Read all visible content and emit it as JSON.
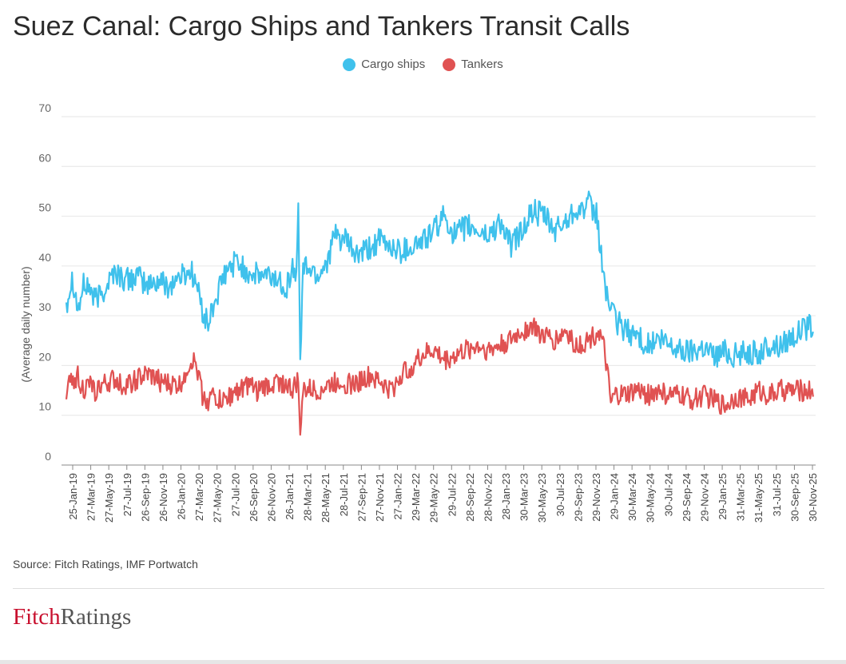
{
  "title": "Suez Canal: Cargo Ships and Tankers Transit Calls",
  "legend": [
    {
      "label": "Cargo ships",
      "color": "#3fc1ec"
    },
    {
      "label": "Tankers",
      "color": "#e05252"
    }
  ],
  "source": "Source: Fitch Ratings, IMF Portwatch",
  "brand": {
    "part1": "Fitch",
    "part2": "Ratings"
  },
  "chart_data": {
    "type": "line",
    "title": "Suez Canal: Cargo Ships and Tankers Transit Calls",
    "xlabel": "",
    "ylabel": "(Average daily number)",
    "ylim": [
      0,
      70
    ],
    "yticks": [
      0,
      10,
      20,
      30,
      40,
      50,
      60,
      70
    ],
    "grid": true,
    "legend_position": "top-center",
    "xlim": [
      2019.07,
      2025.92
    ],
    "x_tick_labels": [
      "25-Jan-19",
      "27-Mar-19",
      "27-May-19",
      "27-Jul-19",
      "26-Sep-19",
      "26-Nov-19",
      "26-Jan-20",
      "27-Mar-20",
      "27-May-20",
      "27-Jul-20",
      "26-Sep-20",
      "26-Nov-20",
      "26-Jan-21",
      "28-Mar-21",
      "28-May-21",
      "28-Jul-21",
      "27-Sep-21",
      "27-Nov-21",
      "27-Jan-22",
      "29-Mar-22",
      "29-May-22",
      "29-Jul-22",
      "28-Sep-22",
      "28-Nov-22",
      "28-Jan-23",
      "30-Mar-23",
      "30-May-23",
      "30-Jul-23",
      "29-Sep-23",
      "29-Nov-23",
      "29-Jan-24",
      "30-Mar-24",
      "30-May-24",
      "30-Jul-24",
      "29-Sep-24",
      "29-Nov-24",
      "29-Jan-25",
      "31-Mar-25",
      "31-May-25",
      "31-Jul-25",
      "30-Sep-25",
      "30-Nov-25"
    ],
    "series": [
      {
        "name": "Cargo ships",
        "color": "#3fc1ec",
        "x": [
          2019.07,
          2019.12,
          2019.17,
          2019.22,
          2019.27,
          2019.32,
          2019.37,
          2019.45,
          2019.55,
          2019.65,
          2019.75,
          2019.85,
          2019.95,
          2020.05,
          2020.15,
          2020.25,
          2020.3,
          2020.35,
          2020.4,
          2020.45,
          2020.5,
          2020.55,
          2020.65,
          2020.75,
          2020.85,
          2020.95,
          2021.05,
          2021.12,
          2021.17,
          2021.2,
          2021.22,
          2021.24,
          2021.26,
          2021.3,
          2021.4,
          2021.5,
          2021.55,
          2021.65,
          2021.75,
          2021.85,
          2021.95,
          2022.05,
          2022.15,
          2022.25,
          2022.35,
          2022.45,
          2022.55,
          2022.65,
          2022.75,
          2022.85,
          2022.95,
          2023.05,
          2023.15,
          2023.25,
          2023.35,
          2023.45,
          2023.55,
          2023.65,
          2023.75,
          2023.8,
          2023.85,
          2023.9,
          2023.93,
          2023.96,
          2024.0,
          2024.05,
          2024.1,
          2024.2,
          2024.3,
          2024.4,
          2024.5,
          2024.6,
          2024.7,
          2024.8,
          2024.9,
          2025.0,
          2025.1,
          2025.2,
          2025.3,
          2025.4,
          2025.5,
          2025.6,
          2025.7,
          2025.8,
          2025.9
        ],
        "values": [
          34,
          33,
          38,
          31,
          36,
          36,
          33,
          35,
          39,
          37,
          38,
          36,
          37,
          36,
          38,
          39,
          36,
          31,
          28,
          32,
          35,
          38,
          41,
          39,
          38,
          38,
          37,
          36,
          40,
          36,
          54,
          18,
          39,
          40,
          38,
          42,
          46,
          45,
          42,
          43,
          45,
          44,
          43,
          44,
          45,
          47,
          50,
          46,
          48,
          47,
          46,
          49,
          44,
          47,
          51,
          50,
          47,
          49,
          52,
          51,
          53,
          50,
          51,
          44,
          37,
          32,
          29,
          27,
          26,
          24,
          25,
          24,
          23,
          23,
          24,
          22,
          23,
          22,
          23,
          22,
          24,
          24,
          26,
          27,
          28
        ]
      },
      {
        "name": "Tankers",
        "color": "#e05252",
        "x": [
          2019.07,
          2019.12,
          2019.17,
          2019.22,
          2019.27,
          2019.32,
          2019.37,
          2019.45,
          2019.55,
          2019.65,
          2019.75,
          2019.85,
          2019.95,
          2020.05,
          2020.15,
          2020.2,
          2020.25,
          2020.3,
          2020.35,
          2020.4,
          2020.45,
          2020.5,
          2020.55,
          2020.65,
          2020.75,
          2020.85,
          2020.95,
          2021.05,
          2021.12,
          2021.17,
          2021.22,
          2021.24,
          2021.26,
          2021.3,
          2021.4,
          2021.5,
          2021.6,
          2021.7,
          2021.8,
          2021.9,
          2022.0,
          2022.05,
          2022.1,
          2022.15,
          2022.2,
          2022.25,
          2022.35,
          2022.45,
          2022.55,
          2022.65,
          2022.75,
          2022.85,
          2022.95,
          2023.05,
          2023.15,
          2023.25,
          2023.35,
          2023.45,
          2023.55,
          2023.65,
          2023.75,
          2023.85,
          2023.9,
          2023.95,
          2024.0,
          2024.03,
          2024.06,
          2024.1,
          2024.2,
          2024.3,
          2024.4,
          2024.5,
          2024.6,
          2024.7,
          2024.8,
          2024.9,
          2025.0,
          2025.1,
          2025.2,
          2025.3,
          2025.4,
          2025.5,
          2025.6,
          2025.7,
          2025.8,
          2025.9
        ],
        "values": [
          16,
          15,
          17,
          18,
          15,
          16,
          15,
          16,
          17,
          16,
          17,
          18,
          17,
          16,
          16,
          19,
          21,
          20,
          14,
          13,
          14,
          13,
          13,
          15,
          16,
          15,
          16,
          17,
          16,
          15,
          17,
          5,
          15,
          15,
          15,
          16,
          17,
          16,
          17,
          18,
          16,
          15,
          16,
          18,
          19,
          20,
          22,
          23,
          21,
          22,
          23,
          24,
          23,
          24,
          25,
          27,
          28,
          26,
          25,
          27,
          24,
          25,
          26,
          27,
          23,
          18,
          12,
          14,
          14,
          15,
          14,
          15,
          14,
          14,
          13,
          14,
          13,
          12,
          14,
          13,
          15,
          14,
          15,
          15,
          15,
          15
        ]
      }
    ]
  }
}
